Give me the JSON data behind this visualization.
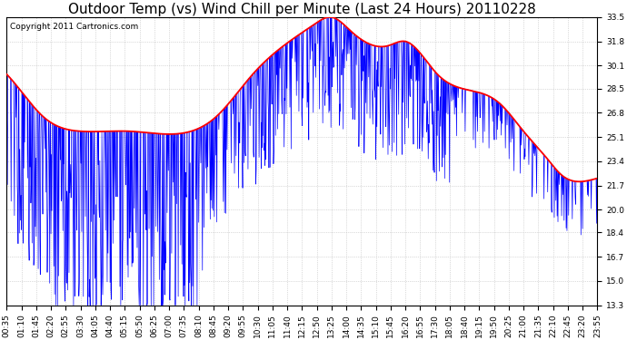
{
  "title": "Outdoor Temp (vs) Wind Chill per Minute (Last 24 Hours) 20110228",
  "copyright_text": "Copyright 2011 Cartronics.com",
  "ylim": [
    13.3,
    33.5
  ],
  "yticks": [
    13.3,
    15.0,
    16.7,
    18.4,
    20.0,
    21.7,
    23.4,
    25.1,
    26.8,
    28.5,
    30.1,
    31.8,
    33.5
  ],
  "xtick_labels": [
    "00:35",
    "01:10",
    "01:45",
    "02:20",
    "02:55",
    "03:30",
    "04:05",
    "04:40",
    "05:15",
    "05:50",
    "06:25",
    "07:00",
    "07:35",
    "08:10",
    "08:45",
    "09:20",
    "09:55",
    "10:30",
    "11:05",
    "11:40",
    "12:15",
    "12:50",
    "13:25",
    "14:00",
    "14:35",
    "15:10",
    "15:45",
    "16:20",
    "16:55",
    "17:30",
    "18:05",
    "18:40",
    "19:15",
    "19:50",
    "20:25",
    "21:00",
    "21:35",
    "22:10",
    "22:45",
    "23:20",
    "23:55"
  ],
  "background_color": "#ffffff",
  "plot_bg_color": "#ffffff",
  "grid_color": "#bbbbbb",
  "red_line_color": "#ff0000",
  "blue_line_color": "#0000ff",
  "title_fontsize": 11,
  "tick_fontsize": 6.5,
  "copyright_fontsize": 6.5,
  "red_keypoints_t": [
    0.0,
    0.5,
    1.5,
    3.0,
    5.0,
    6.5,
    8.5,
    10.0,
    12.5,
    13.2,
    14.0,
    15.5,
    16.2,
    17.5,
    18.5,
    20.0,
    21.0,
    22.0,
    22.5,
    23.5,
    24.0
  ],
  "red_keypoints_v": [
    29.5,
    28.5,
    26.5,
    25.5,
    25.5,
    25.3,
    26.5,
    29.5,
    33.0,
    33.5,
    32.5,
    31.5,
    31.8,
    29.5,
    28.5,
    27.5,
    25.5,
    23.5,
    22.5,
    22.0,
    22.2
  ]
}
